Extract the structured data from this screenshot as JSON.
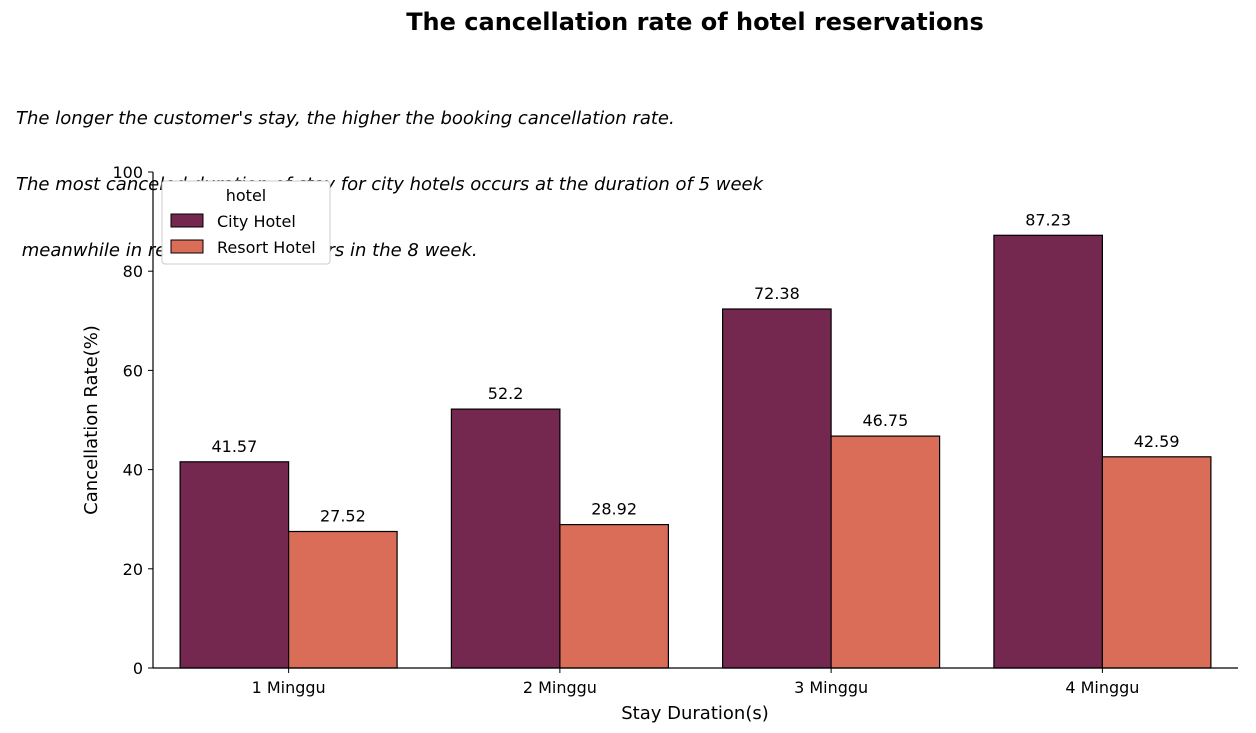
{
  "chart_data": {
    "type": "bar",
    "title": "The cancellation rate of hotel reservations",
    "subtitle_lines": [
      "The longer the customer's stay, the higher the booking cancellation rate.",
      "The most canceled duration of stay for city hotels occurs at the duration of 5 week",
      " meanwhile in resort hotels it occurs in the 8 week."
    ],
    "xlabel": "Stay Duration(s)",
    "ylabel": "Cancellation Rate(%)",
    "ylim": [
      0,
      100
    ],
    "yticks": [
      "0",
      "20",
      "40",
      "60",
      "80",
      "100"
    ],
    "categories": [
      "1 Minggu",
      "2 Minggu",
      "3 Minggu",
      "4 Minggu"
    ],
    "legend_title": "hotel",
    "legend_position": "top-left",
    "grid": false,
    "series": [
      {
        "name": "City Hotel",
        "color": "#74284f",
        "values": [
          41.57,
          52.2,
          72.38,
          87.23
        ],
        "labels": [
          "41.57",
          "52.2",
          "72.38",
          "87.23"
        ]
      },
      {
        "name": "Resort Hotel",
        "color": "#da6d58",
        "values": [
          27.52,
          28.92,
          46.75,
          42.59
        ],
        "labels": [
          "27.52",
          "28.92",
          "46.75",
          "42.59"
        ]
      }
    ]
  }
}
